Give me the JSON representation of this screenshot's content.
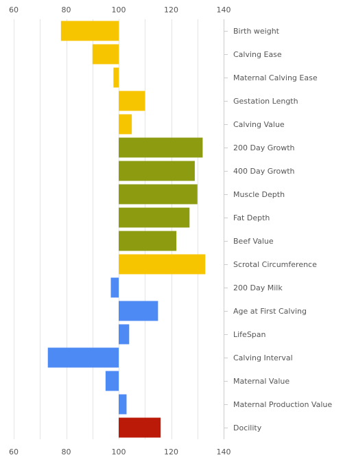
{
  "chart_data": {
    "type": "bar",
    "orientation": "horizontal",
    "baseline": 100,
    "xlim": [
      60,
      140
    ],
    "x_ticks": [
      60,
      80,
      100,
      120,
      140
    ],
    "tick_labels": [
      "60",
      "80",
      "100",
      "120",
      "140"
    ],
    "grid": true,
    "legend": "none",
    "categories": [
      "Birth weight",
      "Calving Ease",
      "Maternal Calving Ease",
      "Gestation Length",
      "Calving Value",
      "200 Day Growth",
      "400 Day Growth",
      "Muscle Depth",
      "Fat Depth",
      "Beef Value",
      "Scrotal Circumference",
      "200 Day Milk",
      "Age at First Calving",
      "LifeSpan",
      "Calving Interval",
      "Maternal Value",
      "Maternal Production Value",
      "Docility"
    ],
    "values": [
      78,
      90,
      98,
      110,
      105,
      132,
      129,
      130,
      127,
      122,
      133,
      97,
      115,
      104,
      73,
      95,
      103,
      116
    ],
    "bar_colors": [
      "#F7C500",
      "#F7C500",
      "#F7C500",
      "#F7C500",
      "#F7C500",
      "#8C9B10",
      "#8C9B10",
      "#8C9B10",
      "#8C9B10",
      "#8C9B10",
      "#F7C500",
      "#4E8AF4",
      "#4E8AF4",
      "#4E8AF4",
      "#4E8AF4",
      "#4E8AF4",
      "#4E8AF4",
      "#BB1A08"
    ],
    "title": "",
    "xlabel": "",
    "ylabel": ""
  }
}
